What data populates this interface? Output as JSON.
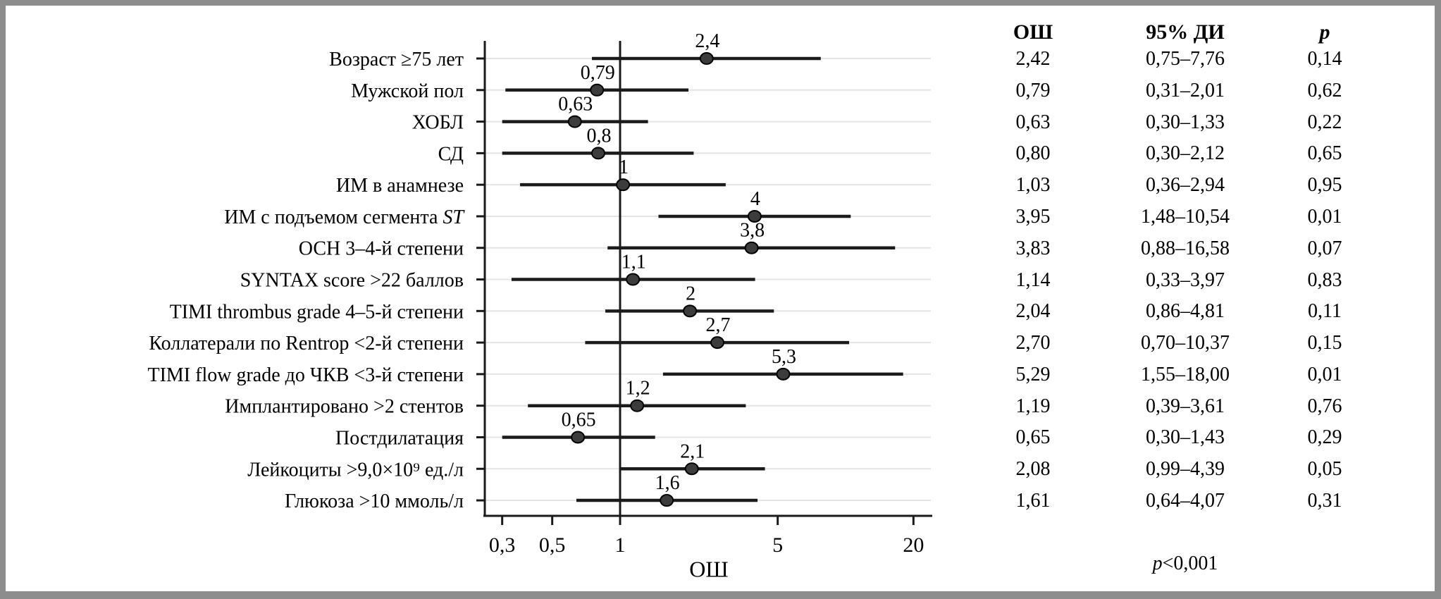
{
  "chart_data": {
    "type": "forest",
    "scale": "log",
    "xlabel": "ОШ",
    "x_domain": [
      0.25,
      24.2
    ],
    "reference_line": 1,
    "grid": "horizontal-light",
    "x_ticks": [
      {
        "value": 0.3,
        "label": "0,3"
      },
      {
        "value": 0.5,
        "label": "0,5"
      },
      {
        "value": 1,
        "label": "1"
      },
      {
        "value": 5,
        "label": "5"
      },
      {
        "value": 20,
        "label": "20"
      }
    ],
    "columns": [
      "ОШ",
      "95% ДИ",
      "p"
    ],
    "rows": [
      {
        "label": "Возраст ≥75 лет",
        "or": 2.42,
        "ci_low": 0.75,
        "ci_high": 7.76,
        "point_label": "2,4",
        "or_text": "2,42",
        "ci_text": "0,75–7,76",
        "p_text": "0,14"
      },
      {
        "label": "Мужской пол",
        "or": 0.79,
        "ci_low": 0.31,
        "ci_high": 2.01,
        "point_label": "0,79",
        "or_text": "0,79",
        "ci_text": "0,31–2,01",
        "p_text": "0,62"
      },
      {
        "label": "ХОБЛ",
        "or": 0.63,
        "ci_low": 0.3,
        "ci_high": 1.33,
        "point_label": "0,63",
        "or_text": "0,63",
        "ci_text": "0,30–1,33",
        "p_text": "0,22"
      },
      {
        "label": "СД",
        "or": 0.8,
        "ci_low": 0.3,
        "ci_high": 2.12,
        "point_label": "0,8",
        "or_text": "0,80",
        "ci_text": "0,30–2,12",
        "p_text": "0,65"
      },
      {
        "label": "ИМ в анамнезе",
        "or": 1.03,
        "ci_low": 0.36,
        "ci_high": 2.94,
        "point_label": "1",
        "or_text": "1,03",
        "ci_text": "0,36–2,94",
        "p_text": "0,95"
      },
      {
        "label": "ИМ с подъемом сегмента ST",
        "label_main": "ИМ с подъемом сегмента ",
        "label_italic": "ST",
        "or": 3.95,
        "ci_low": 1.48,
        "ci_high": 10.54,
        "point_label": "4",
        "or_text": "3,95",
        "ci_text": "1,48–10,54",
        "p_text": "0,01"
      },
      {
        "label": "ОСН 3–4-й степени",
        "or": 3.83,
        "ci_low": 0.88,
        "ci_high": 16.58,
        "point_label": "3,8",
        "or_text": "3,83",
        "ci_text": "0,88–16,58",
        "p_text": "0,07"
      },
      {
        "label": "SYNTAX score >22 баллов",
        "or": 1.14,
        "ci_low": 0.33,
        "ci_high": 3.97,
        "point_label": "1,1",
        "or_text": "1,14",
        "ci_text": "0,33–3,97",
        "p_text": "0,83"
      },
      {
        "label": "TIMI thrombus grade 4–5-й степени",
        "or": 2.04,
        "ci_low": 0.86,
        "ci_high": 4.81,
        "point_label": "2",
        "or_text": "2,04",
        "ci_text": "0,86–4,81",
        "p_text": "0,11"
      },
      {
        "label": "Коллатерали по Rentrop <2-й степени",
        "or": 2.7,
        "ci_low": 0.7,
        "ci_high": 10.37,
        "point_label": "2,7",
        "or_text": "2,70",
        "ci_text": "0,70–10,37",
        "p_text": "0,15"
      },
      {
        "label": "TIMI flow grade до ЧКВ <3-й степени",
        "or": 5.29,
        "ci_low": 1.55,
        "ci_high": 18.0,
        "point_label": "5,3",
        "or_text": "5,29",
        "ci_text": "1,55–18,00",
        "p_text": "0,01"
      },
      {
        "label": "Имплантировано >2 стентов",
        "or": 1.19,
        "ci_low": 0.39,
        "ci_high": 3.61,
        "point_label": "1,2",
        "or_text": "1,19",
        "ci_text": "0,39–3,61",
        "p_text": "0,76"
      },
      {
        "label": "Постдилатация",
        "or": 0.65,
        "ci_low": 0.3,
        "ci_high": 1.43,
        "point_label": "0,65",
        "or_text": "0,65",
        "ci_text": "0,30–1,43",
        "p_text": "0,29"
      },
      {
        "label": "Лейкоциты >9,0×10⁹ ед./л",
        "or": 2.08,
        "ci_low": 0.99,
        "ci_high": 4.39,
        "point_label": "2,1",
        "or_text": "2,08",
        "ci_text": "0,99–4,39",
        "p_text": "0,05"
      },
      {
        "label": "Глюкоза >10 ммоль/л",
        "or": 1.61,
        "ci_low": 0.64,
        "ci_high": 4.07,
        "point_label": "1,6",
        "or_text": "1,61",
        "ci_text": "0,64–4,07",
        "p_text": "0,31"
      }
    ],
    "footer": {
      "italic": "p",
      "rest": "<0,001",
      "combined": "p<0,001"
    },
    "colors": {
      "marker_fill": "#3c3c3c",
      "marker_stroke": "#000000",
      "ci_line": "#1b1b1b",
      "axis": "#1a1a1a",
      "gridline": "#e4e4e4",
      "frame": "#8d8d8d",
      "background": "#ffffff",
      "text": "#000000"
    }
  }
}
